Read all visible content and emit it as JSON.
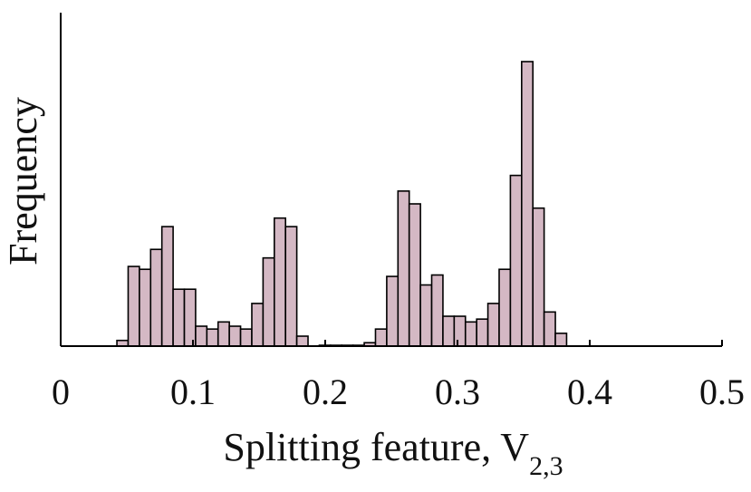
{
  "chart_data": {
    "type": "bar",
    "subtype": "histogram",
    "xlabel": "Splitting feature, V",
    "xlabel_subscript": "2,3",
    "ylabel": "Frequency",
    "xlim": [
      0,
      0.5
    ],
    "ylim": [
      0,
      1
    ],
    "xticks": [
      0,
      0.1,
      0.2,
      0.3,
      0.4,
      0.5
    ],
    "xtick_labels": [
      "0",
      "0.1",
      "0.2",
      "0.3",
      "0.4",
      "0.5"
    ],
    "yticks_shown": false,
    "grid": false,
    "bar_color": "#d4b8c4",
    "edge_color": "#000000",
    "bin_width": 0.0085,
    "bins": [
      {
        "x": 0.0425,
        "value": 0.02
      },
      {
        "x": 0.051,
        "value": 0.28
      },
      {
        "x": 0.0595,
        "value": 0.27
      },
      {
        "x": 0.068,
        "value": 0.34
      },
      {
        "x": 0.0765,
        "value": 0.42
      },
      {
        "x": 0.085,
        "value": 0.2
      },
      {
        "x": 0.0935,
        "value": 0.2
      },
      {
        "x": 0.102,
        "value": 0.07
      },
      {
        "x": 0.1105,
        "value": 0.06
      },
      {
        "x": 0.119,
        "value": 0.085
      },
      {
        "x": 0.1275,
        "value": 0.07
      },
      {
        "x": 0.136,
        "value": 0.06
      },
      {
        "x": 0.1445,
        "value": 0.15
      },
      {
        "x": 0.153,
        "value": 0.31
      },
      {
        "x": 0.1615,
        "value": 0.45
      },
      {
        "x": 0.17,
        "value": 0.42
      },
      {
        "x": 0.1785,
        "value": 0.035
      },
      {
        "x": 0.1955,
        "value": 0.003
      },
      {
        "x": 0.204,
        "value": 0.003
      },
      {
        "x": 0.2125,
        "value": 0.003
      },
      {
        "x": 0.221,
        "value": 0.003
      },
      {
        "x": 0.2295,
        "value": 0.012
      },
      {
        "x": 0.238,
        "value": 0.06
      },
      {
        "x": 0.2465,
        "value": 0.245
      },
      {
        "x": 0.255,
        "value": 0.545
      },
      {
        "x": 0.2635,
        "value": 0.5
      },
      {
        "x": 0.272,
        "value": 0.215
      },
      {
        "x": 0.2805,
        "value": 0.25
      },
      {
        "x": 0.289,
        "value": 0.105
      },
      {
        "x": 0.2975,
        "value": 0.105
      },
      {
        "x": 0.306,
        "value": 0.085
      },
      {
        "x": 0.3145,
        "value": 0.095
      },
      {
        "x": 0.323,
        "value": 0.15
      },
      {
        "x": 0.3315,
        "value": 0.27
      },
      {
        "x": 0.34,
        "value": 0.6
      },
      {
        "x": 0.3485,
        "value": 1.0
      },
      {
        "x": 0.357,
        "value": 0.485
      },
      {
        "x": 0.3655,
        "value": 0.12
      },
      {
        "x": 0.374,
        "value": 0.045
      }
    ]
  }
}
